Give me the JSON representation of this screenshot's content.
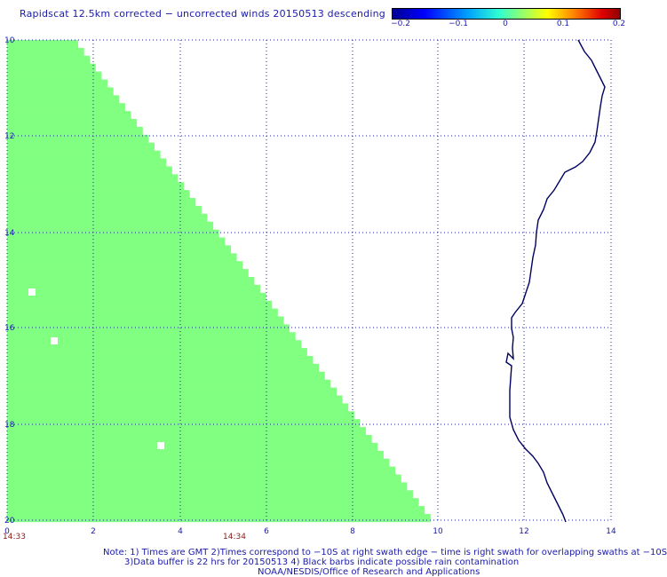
{
  "title": "Rapidscat 12.5km corrected − uncorrected winds 20150513 descending",
  "colorbar": {
    "labels": [
      "−0.2",
      "−0.1",
      "0",
      "0.1",
      "0.2"
    ],
    "colors": [
      "#000090",
      "#0000ff",
      "#00a0ff",
      "#30ffd0",
      "#b0ff50",
      "#ffff00",
      "#ff8000",
      "#e00000",
      "#900000"
    ]
  },
  "axes": {
    "x_ticks": [
      "0",
      "2",
      "4",
      "6",
      "8",
      "10",
      "12",
      "14"
    ],
    "y_ticks": [
      "10",
      "12",
      "14",
      "16",
      "18",
      "20"
    ]
  },
  "swath": {
    "color": "#80ff80",
    "value": 0
  },
  "times": [
    "14:33",
    "14:34"
  ],
  "notes": {
    "line1": "Note: 1) Times are GMT 2)Times correspond to −10S at right swath edge − time is right swath for overlapping swaths at −10S",
    "line2": "3)Data buffer is 22 hrs for 20150513 4) Black barbs indicate possible rain contamination",
    "line3": "NOAA/NESDIS/Office of Research and Applications"
  },
  "coastline_color": "#000060"
}
